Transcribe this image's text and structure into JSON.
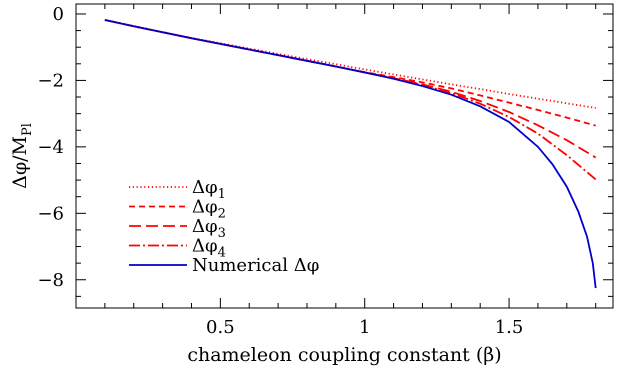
{
  "chart_data": {
    "type": "line",
    "title": "",
    "xlabel": "chameleon coupling constant (β)",
    "ylabel": "Δφ/M",
    "ylabel_sub": "Pl",
    "xlim": [
      0,
      1.86
    ],
    "ylim": [
      -8.85,
      0.3
    ],
    "x_ticks": [
      0.5,
      1,
      1.5
    ],
    "x_tick_labels": [
      "0.5",
      "1",
      "1.5"
    ],
    "y_ticks": [
      0,
      -2,
      -4,
      -6,
      -8
    ],
    "y_tick_labels": [
      "0",
      "−2",
      "−4",
      "−6",
      "−8"
    ],
    "grid": false,
    "legend_position": "bottom-left",
    "series": [
      {
        "name": "Δφ1",
        "legend_main": "Δφ",
        "legend_sub": "1",
        "color": "#ff0000",
        "style": "dotted",
        "x": [
          0.1,
          0.2,
          0.3,
          0.4,
          0.5,
          0.6,
          0.7,
          0.8,
          0.9,
          1.0,
          1.1,
          1.2,
          1.3,
          1.4,
          1.5,
          1.6,
          1.7,
          1.8
        ],
        "y": [
          -0.18,
          -0.36,
          -0.55,
          -0.72,
          -0.88,
          -1.04,
          -1.2,
          -1.36,
          -1.51,
          -1.67,
          -1.82,
          -1.97,
          -2.12,
          -2.26,
          -2.41,
          -2.55,
          -2.69,
          -2.83
        ]
      },
      {
        "name": "Δφ2",
        "legend_main": "Δφ",
        "legend_sub": "2",
        "color": "#ff0000",
        "style": "dashed",
        "x": [
          0.1,
          0.2,
          0.3,
          0.4,
          0.5,
          0.6,
          0.7,
          0.8,
          0.9,
          1.0,
          1.1,
          1.2,
          1.3,
          1.4,
          1.5,
          1.6,
          1.7,
          1.8
        ],
        "y": [
          -0.18,
          -0.37,
          -0.55,
          -0.73,
          -0.9,
          -1.07,
          -1.24,
          -1.41,
          -1.58,
          -1.75,
          -1.9,
          -2.06,
          -2.24,
          -2.45,
          -2.67,
          -2.89,
          -3.12,
          -3.36
        ]
      },
      {
        "name": "Δφ3",
        "legend_main": "Δφ",
        "legend_sub": "3",
        "color": "#ff0000",
        "style": "longdash",
        "x": [
          0.1,
          0.2,
          0.3,
          0.4,
          0.5,
          0.6,
          0.7,
          0.8,
          0.9,
          1.0,
          1.1,
          1.2,
          1.3,
          1.4,
          1.5,
          1.6,
          1.7,
          1.8
        ],
        "y": [
          -0.18,
          -0.37,
          -0.55,
          -0.73,
          -0.9,
          -1.07,
          -1.24,
          -1.41,
          -1.58,
          -1.76,
          -1.93,
          -2.12,
          -2.34,
          -2.62,
          -2.95,
          -3.35,
          -3.8,
          -4.32
        ]
      },
      {
        "name": "Δφ4",
        "legend_main": "Δφ",
        "legend_sub": "4",
        "color": "#ff0000",
        "style": "dashdot",
        "x": [
          0.1,
          0.2,
          0.3,
          0.4,
          0.5,
          0.6,
          0.7,
          0.8,
          0.9,
          1.0,
          1.1,
          1.2,
          1.3,
          1.4,
          1.5,
          1.6,
          1.7,
          1.8
        ],
        "y": [
          -0.18,
          -0.37,
          -0.55,
          -0.73,
          -0.9,
          -1.07,
          -1.24,
          -1.41,
          -1.58,
          -1.76,
          -1.94,
          -2.14,
          -2.38,
          -2.7,
          -3.1,
          -3.6,
          -4.25,
          -4.98
        ]
      },
      {
        "name": "Numerical Δφ",
        "legend_main": "Numerical Δφ",
        "legend_sub": "",
        "color": "#0000cc",
        "style": "solid",
        "x": [
          0.1,
          0.2,
          0.3,
          0.4,
          0.5,
          0.6,
          0.7,
          0.8,
          0.9,
          1.0,
          1.1,
          1.2,
          1.3,
          1.4,
          1.5,
          1.6,
          1.65,
          1.7,
          1.74,
          1.77,
          1.79,
          1.8
        ],
        "y": [
          -0.18,
          -0.37,
          -0.55,
          -0.73,
          -0.9,
          -1.07,
          -1.24,
          -1.41,
          -1.58,
          -1.76,
          -1.95,
          -2.17,
          -2.43,
          -2.78,
          -3.25,
          -4.0,
          -4.52,
          -5.2,
          -5.95,
          -6.7,
          -7.5,
          -8.25
        ]
      }
    ]
  }
}
